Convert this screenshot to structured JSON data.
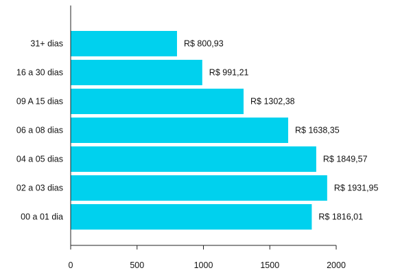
{
  "chart_data": {
    "type": "bar",
    "orientation": "horizontal",
    "categories": [
      "31+ dias",
      "16 a 30 dias",
      "09 A 15 dias",
      "06 a 08 dias",
      "04 a 05 dias",
      "02 a 03 dias",
      "00 a 01 dia"
    ],
    "values": [
      800.93,
      991.21,
      1302.38,
      1638.35,
      1849.57,
      1931.95,
      1816.01
    ],
    "data_labels": [
      "R$ 800,93",
      "R$ 991,21",
      "R$ 1302,38",
      "R$ 1638,35",
      "R$ 1849,57",
      "R$ 1931,95",
      "R$ 1816,01"
    ],
    "x_ticks": [
      0,
      500,
      1000,
      1500,
      2000
    ],
    "x_tick_labels": [
      "0",
      "500",
      "1000",
      "1500",
      "2000"
    ],
    "xlim": [
      0,
      2000
    ],
    "title": "",
    "xlabel": "",
    "ylabel": "",
    "grid": false,
    "legend": "none",
    "bar_color": "#00D1EE",
    "axis_color": "#222222"
  }
}
